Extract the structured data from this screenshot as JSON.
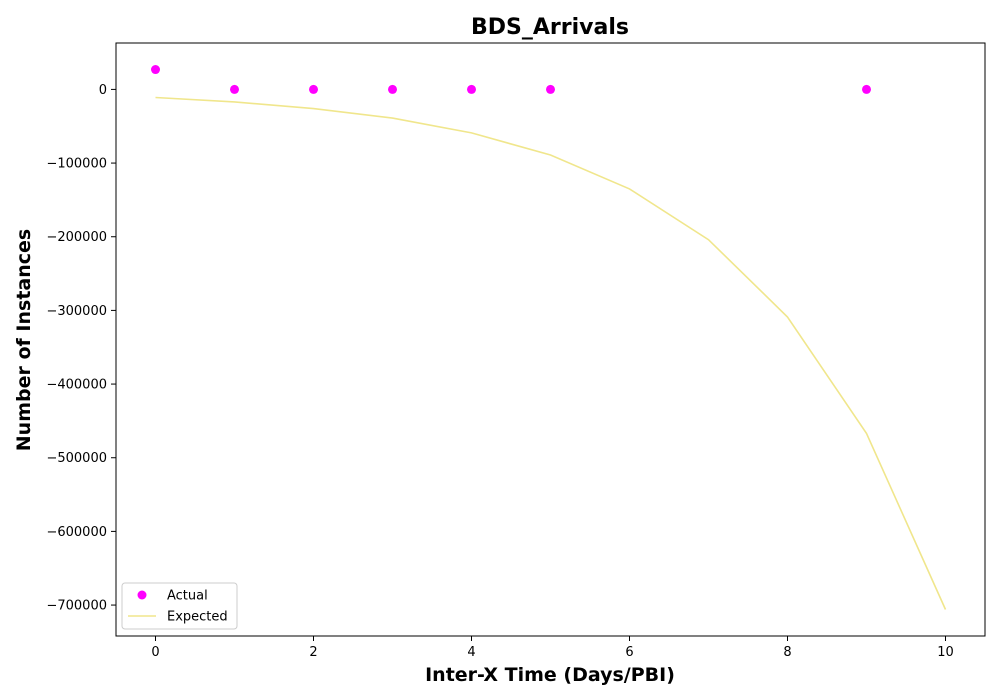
{
  "chart_data": {
    "type": "scatter",
    "title": "BDS_Arrivals",
    "xlabel": "Inter-X Time (Days/PBI)",
    "ylabel": "Number of Instances",
    "xlim": [
      -0.5,
      10.5
    ],
    "ylim": [
      -742000,
      63000
    ],
    "xticks": [
      0,
      2,
      4,
      6,
      8,
      10
    ],
    "yticks": [
      0,
      -100000,
      -200000,
      -300000,
      -400000,
      -500000,
      -600000,
      -700000
    ],
    "xtick_labels": [
      "0",
      "2",
      "4",
      "6",
      "8",
      "10"
    ],
    "ytick_labels": [
      "0",
      "−100000",
      "−200000",
      "−300000",
      "−400000",
      "−500000",
      "−600000",
      "−700000"
    ],
    "grid": false,
    "legend_position": "bottom-left",
    "series": [
      {
        "name": "Actual",
        "kind": "scatter",
        "color": "#ff00ff",
        "x": [
          0,
          1,
          2,
          3,
          4,
          5,
          9
        ],
        "y": [
          27000,
          1,
          1,
          1,
          1,
          1,
          1
        ]
      },
      {
        "name": "Expected",
        "kind": "line",
        "color": "#f0e68c",
        "x": [
          0,
          1,
          2,
          3,
          4,
          5,
          6,
          7,
          8,
          9,
          10
        ],
        "y": [
          -11000,
          -17000,
          -26000,
          -39000,
          -59000,
          -89000,
          -135000,
          -204000,
          -309000,
          -467000,
          -706000
        ]
      }
    ]
  }
}
